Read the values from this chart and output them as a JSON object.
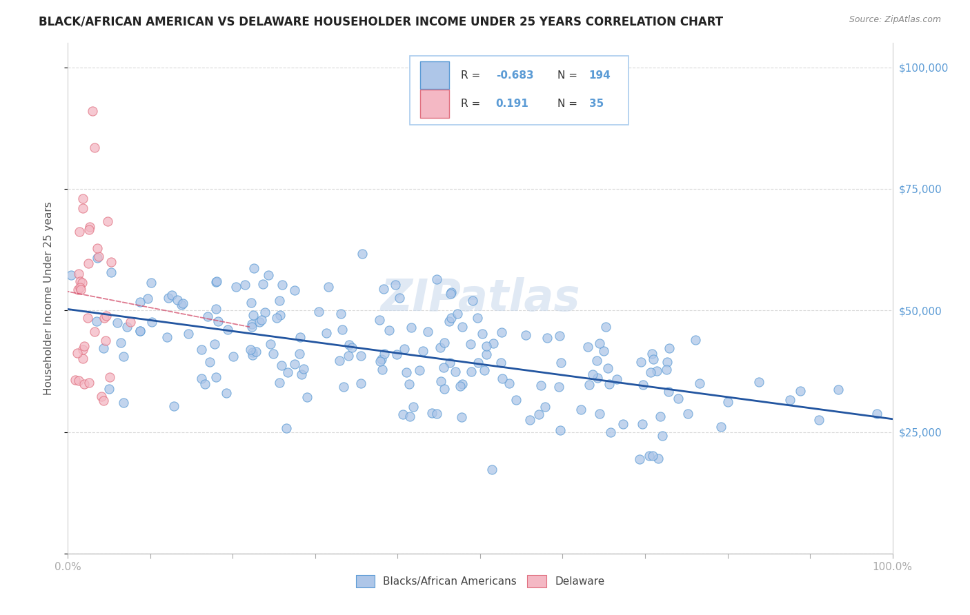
{
  "title": "BLACK/AFRICAN AMERICAN VS DELAWARE HOUSEHOLDER INCOME UNDER 25 YEARS CORRELATION CHART",
  "source": "Source: ZipAtlas.com",
  "ylabel": "Householder Income Under 25 years",
  "xlim": [
    0,
    1.0
  ],
  "ylim": [
    0,
    105000
  ],
  "yticks": [
    0,
    25000,
    50000,
    75000,
    100000
  ],
  "legend_series": [
    {
      "label": "Blacks/African Americans",
      "color": "#aec6e8",
      "edge": "#5b9bd5",
      "R": "-0.683",
      "N": "194"
    },
    {
      "label": "Delaware",
      "color": "#f4b8c4",
      "edge": "#e07080",
      "R": "0.191",
      "N": "35"
    }
  ],
  "watermark": "ZIPatlas",
  "background_color": "#ffffff",
  "grid_color": "#d0d0d0",
  "blue_color": "#5b9bd5",
  "trend_blue_color": "#2255a0",
  "trend_pink_color": "#d04060"
}
